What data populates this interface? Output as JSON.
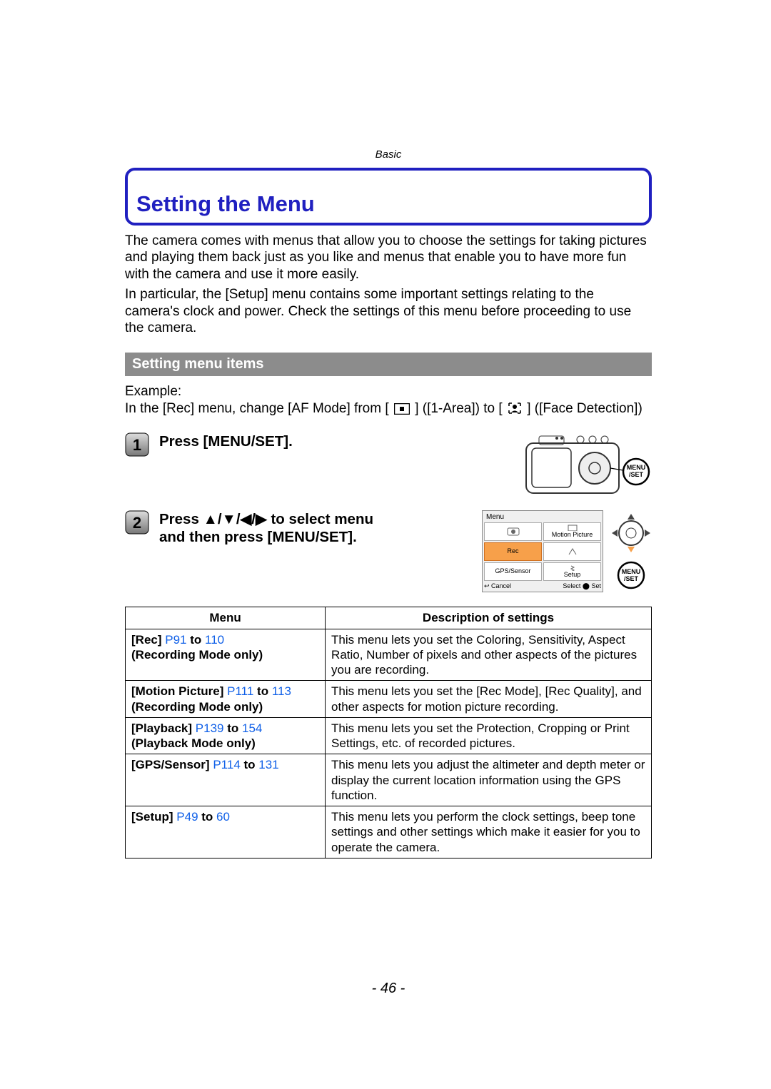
{
  "colors": {
    "accent_blue": "#2020c0",
    "link_blue": "#1060e8",
    "section_gray": "#8c8c8c",
    "rec_orange": "#f7a04a",
    "dpad_arrow_orange": "#f7a04a",
    "text_black": "#000000"
  },
  "header": {
    "section_label": "Basic"
  },
  "title": "Setting the Menu",
  "intro": {
    "p1": "The camera comes with menus that allow you to choose the settings for taking pictures and playing them back just as you like and menus that enable you to have more fun with the camera and use it more easily.",
    "p2": "In particular, the [Setup] menu contains some important settings relating to the camera's clock and power. Check the settings of this menu before proceeding to use the camera."
  },
  "section_heading": "Setting menu items",
  "example": {
    "label": "Example:",
    "line_prefix": "In the [Rec] menu, change [AF Mode] from [",
    "mode1_label": "] ([1-Area]) to [",
    "mode2_label": "] ([Face Detection])"
  },
  "steps": {
    "s1": {
      "num": "1",
      "text": "Press [MENU/SET]."
    },
    "s2": {
      "num": "2",
      "prefix": "Press ",
      "arrows": "▲/▼/◀/▶",
      "suffix": " to select menu and then press [MENU/SET]."
    }
  },
  "menu_screen": {
    "header": "Menu",
    "cells": [
      "",
      "Motion Picture",
      "Rec",
      "",
      "GPS/Sensor",
      "Setup"
    ],
    "foot_left": "↩ Cancel",
    "foot_right": "Select ⬤ Set"
  },
  "controls": {
    "menu_set_label": "MENU\n/SET"
  },
  "table": {
    "headers": {
      "menu": "Menu",
      "desc": "Description of settings"
    },
    "rows": [
      {
        "name": "[Rec]",
        "pages": "P91 to 110",
        "pages_prefix": "P91",
        "pages_mid": " to ",
        "pages_end": "110",
        "note": "(Recording Mode only)",
        "desc": "This menu lets you set the Coloring, Sensitivity, Aspect Ratio, Number of pixels and other aspects of the pictures you are recording."
      },
      {
        "name": "[Motion Picture]",
        "pages_prefix": "P111",
        "pages_mid": " to ",
        "pages_end": "113",
        "note": "(Recording Mode only)",
        "desc": "This menu lets you set the [Rec Mode], [Rec Quality], and other aspects for motion picture recording."
      },
      {
        "name": "[Playback]",
        "pages_prefix": "P139",
        "pages_mid": " to ",
        "pages_end": "154",
        "note": "(Playback Mode only)",
        "desc": "This menu lets you set the Protection, Cropping or Print Settings, etc. of recorded pictures."
      },
      {
        "name": "[GPS/Sensor]",
        "pages_prefix": "P114",
        "pages_mid": " to ",
        "pages_end": "131",
        "note": "",
        "desc": "This menu lets you adjust the altimeter and depth meter or display the current location information using the GPS function."
      },
      {
        "name": "[Setup]",
        "pages_prefix": "P49",
        "pages_mid": " to ",
        "pages_end": "60",
        "note": "",
        "desc": "This menu lets you perform the clock settings, beep tone settings and other settings which make it easier for you to operate the camera."
      }
    ]
  },
  "page_number": "- 46 -"
}
